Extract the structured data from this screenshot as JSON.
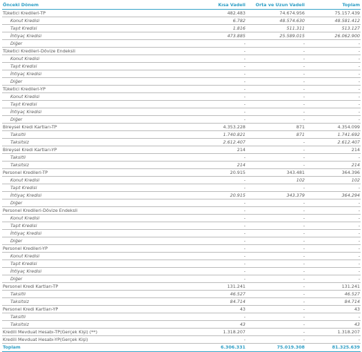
{
  "header": {
    "label": "Önceki Dönem",
    "short": "Kısa Vadeli",
    "long": "Orta ve Uzun Vadeli",
    "total": "Toplam"
  },
  "rows": [
    {
      "label": "Tüketici Kredileri-TP",
      "level": 0,
      "italic": false,
      "short": "482.483",
      "long": "74.674.956",
      "total": "75.157.439"
    },
    {
      "label": "Konut Kredisi",
      "level": 1,
      "italic": true,
      "short": "6.782",
      "long": "48.574.630",
      "total": "48.581.412"
    },
    {
      "label": "Taşıt Kredisi",
      "level": 1,
      "italic": true,
      "short": "1.816",
      "long": "511.311",
      "total": "513.127"
    },
    {
      "label": "İhtiyaç Kredisi",
      "level": 1,
      "italic": true,
      "short": "473.885",
      "long": "25.589.015",
      "total": "26.062.900"
    },
    {
      "label": "Diğer",
      "level": 1,
      "italic": true,
      "short": "-",
      "long": "-",
      "total": "-"
    },
    {
      "label": "Tüketici Kredileri-Dövize Endeksli",
      "level": 0,
      "italic": false,
      "short": "-",
      "long": "-",
      "total": "-"
    },
    {
      "label": "Konut Kredisi",
      "level": 1,
      "italic": true,
      "short": "-",
      "long": "-",
      "total": "-"
    },
    {
      "label": "Taşıt Kredisi",
      "level": 1,
      "italic": true,
      "short": "-",
      "long": "-",
      "total": "-"
    },
    {
      "label": "İhtiyaç Kredisi",
      "level": 1,
      "italic": true,
      "short": "-",
      "long": "-",
      "total": "-"
    },
    {
      "label": "Diğer",
      "level": 1,
      "italic": true,
      "short": "-",
      "long": "-",
      "total": "-"
    },
    {
      "label": "Tüketici Kredileri-YP",
      "level": 0,
      "italic": false,
      "short": "-",
      "long": "-",
      "total": "-"
    },
    {
      "label": "Konut Kredisi",
      "level": 1,
      "italic": true,
      "short": "-",
      "long": "-",
      "total": "-"
    },
    {
      "label": "Taşıt Kredisi",
      "level": 1,
      "italic": true,
      "short": "-",
      "long": "-",
      "total": "-"
    },
    {
      "label": "İhtiyaç Kredisi",
      "level": 1,
      "italic": true,
      "short": "-",
      "long": "-",
      "total": "-"
    },
    {
      "label": "Diğer",
      "level": 1,
      "italic": true,
      "short": "-",
      "long": "-",
      "total": "-"
    },
    {
      "label": "Bireysel Kredi Kartları-TP",
      "level": 0,
      "italic": false,
      "short": "4.353.228",
      "long": "871",
      "total": "4.354.099"
    },
    {
      "label": "Taksitli",
      "level": 1,
      "italic": true,
      "short": "1.740.821",
      "long": "871",
      "total": "1.741.692"
    },
    {
      "label": "Taksitsiz",
      "level": 1,
      "italic": true,
      "short": "2.612.407",
      "long": "-",
      "total": "2.612.407"
    },
    {
      "label": "Bireysel Kredi Kartları-YP",
      "level": 0,
      "italic": false,
      "short": "214",
      "long": "-",
      "total": "214"
    },
    {
      "label": "Taksitli",
      "level": 1,
      "italic": true,
      "short": "-",
      "long": "-",
      "total": "-"
    },
    {
      "label": "Taksitsiz",
      "level": 1,
      "italic": true,
      "short": "214",
      "long": "-",
      "total": "214"
    },
    {
      "label": "Personel Kredileri-TP",
      "level": 0,
      "italic": false,
      "short": "20.915",
      "long": "343.481",
      "total": "364.396"
    },
    {
      "label": "Konut Kredisi",
      "level": 1,
      "italic": true,
      "short": "-",
      "long": "102",
      "total": "102"
    },
    {
      "label": "Taşıt Kredisi",
      "level": 1,
      "italic": true,
      "short": "-",
      "long": "-",
      "total": "-"
    },
    {
      "label": "İhtiyaç Kredisi",
      "level": 1,
      "italic": true,
      "short": "20.915",
      "long": "343.379",
      "total": "364.294"
    },
    {
      "label": "Diğer",
      "level": 1,
      "italic": true,
      "short": "-",
      "long": "-",
      "total": "-"
    },
    {
      "label": "Personel Kredileri-Dövize Endeksli",
      "level": 0,
      "italic": false,
      "short": "-",
      "long": "-",
      "total": "-"
    },
    {
      "label": "Konut Kredisi",
      "level": 1,
      "italic": true,
      "short": "-",
      "long": "-",
      "total": "-"
    },
    {
      "label": "Taşıt Kredisi",
      "level": 1,
      "italic": true,
      "short": "-",
      "long": "-",
      "total": "-"
    },
    {
      "label": "İhtiyaç Kredisi",
      "level": 1,
      "italic": true,
      "short": "-",
      "long": "-",
      "total": "-"
    },
    {
      "label": "Diğer",
      "level": 1,
      "italic": true,
      "short": "-",
      "long": "-",
      "total": "-"
    },
    {
      "label": "Personel Kredileri-YP",
      "level": 0,
      "italic": false,
      "short": "-",
      "long": "-",
      "total": "-"
    },
    {
      "label": "Konut Kredisi",
      "level": 1,
      "italic": true,
      "short": "-",
      "long": "-",
      "total": "-"
    },
    {
      "label": "Taşıt Kredisi",
      "level": 1,
      "italic": true,
      "short": "-",
      "long": "-",
      "total": "-"
    },
    {
      "label": "İhtiyaç Kredisi",
      "level": 1,
      "italic": true,
      "short": "-",
      "long": "-",
      "total": "-"
    },
    {
      "label": "Diğer",
      "level": 1,
      "italic": true,
      "short": "-",
      "long": "-",
      "total": "-"
    },
    {
      "label": "Personel Kredi Kartları-TP",
      "level": 0,
      "italic": false,
      "short": "131.241",
      "long": "-",
      "total": "131.241"
    },
    {
      "label": "Taksitli",
      "level": 1,
      "italic": true,
      "short": "46.527",
      "long": "-",
      "total": "46.527"
    },
    {
      "label": "Taksitsiz",
      "level": 1,
      "italic": true,
      "short": "84.714",
      "long": "-",
      "total": "84.714"
    },
    {
      "label": "Personel Kredi Kartları-YP",
      "level": 0,
      "italic": false,
      "short": "43",
      "long": "-",
      "total": "43"
    },
    {
      "label": "Taksitli",
      "level": 1,
      "italic": true,
      "short": "-",
      "long": "-",
      "total": "-"
    },
    {
      "label": "Taksitsiz",
      "level": 1,
      "italic": true,
      "short": "43",
      "long": "-",
      "total": "43"
    },
    {
      "label": "Kredili Mevduat Hesabı-TP(Gerçek Kişi) (**)",
      "level": 0,
      "italic": false,
      "short": "1.318.207",
      "long": "-",
      "total": "1.318.207"
    },
    {
      "label": "Kredili Mevduat Hesabı-YP(Gerçek Kişi)",
      "level": 0,
      "italic": false,
      "short": "-",
      "long": "-",
      "total": "-"
    }
  ],
  "total_row": {
    "label": "Toplam",
    "short": "6.306.331",
    "long": "75.019.308",
    "total": "81.325.639"
  }
}
